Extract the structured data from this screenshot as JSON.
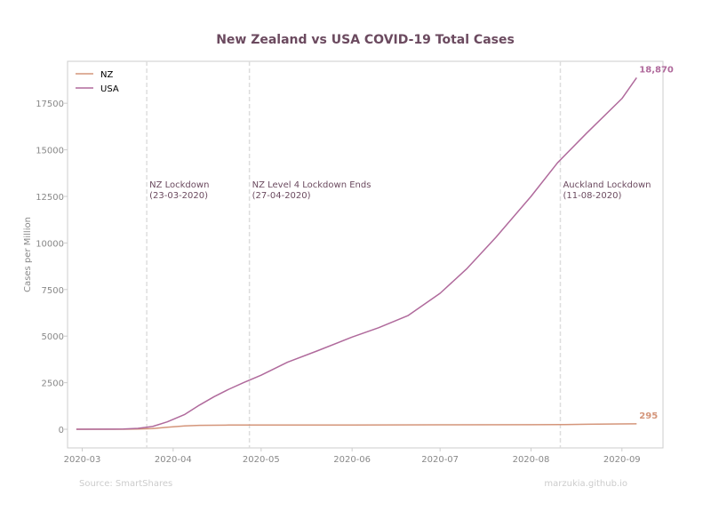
{
  "chart_data": {
    "type": "line",
    "title": "New Zealand vs USA COVID-19 Total Cases",
    "ylabel": "Cases per Million",
    "xlabel": "",
    "xlim": [
      "2020-02-25",
      "2020-09-15"
    ],
    "ylim": [
      -1000,
      19750
    ],
    "grid": false,
    "legend_position": "top-left",
    "x_ticks": [
      "2020-03-01",
      "2020-04-01",
      "2020-05-01",
      "2020-06-01",
      "2020-07-01",
      "2020-08-01",
      "2020-09-01"
    ],
    "x_tick_labels": [
      "2020-03",
      "2020-04",
      "2020-05",
      "2020-06",
      "2020-07",
      "2020-08",
      "2020-09"
    ],
    "y_ticks": [
      0,
      2500,
      5000,
      7500,
      10000,
      12500,
      15000,
      17500
    ],
    "y_tick_labels": [
      "0",
      "2500",
      "5000",
      "7500",
      "10000",
      "12500",
      "15000",
      "17500"
    ],
    "colors": {
      "title": "#6b4a5f",
      "nz": "#d4957a",
      "usa": "#b06a9c",
      "vline": "#dddddd",
      "axis": "#cccccc",
      "tick_text": "#888888",
      "annot_text": "#6b4a5f",
      "footer_text": "#cccccc"
    },
    "series": [
      {
        "name": "NZ",
        "color": "#d4957a",
        "end_label": "295",
        "points": [
          [
            "2020-02-28",
            0
          ],
          [
            "2020-03-10",
            1
          ],
          [
            "2020-03-15",
            2
          ],
          [
            "2020-03-20",
            10
          ],
          [
            "2020-03-25",
            40
          ],
          [
            "2020-03-30",
            110
          ],
          [
            "2020-04-05",
            180
          ],
          [
            "2020-04-10",
            210
          ],
          [
            "2020-04-20",
            225
          ],
          [
            "2020-05-01",
            230
          ],
          [
            "2020-06-01",
            232
          ],
          [
            "2020-07-01",
            240
          ],
          [
            "2020-08-01",
            245
          ],
          [
            "2020-08-11",
            250
          ],
          [
            "2020-08-20",
            270
          ],
          [
            "2020-09-01",
            290
          ],
          [
            "2020-09-06",
            295
          ]
        ]
      },
      {
        "name": "USA",
        "color": "#b06a9c",
        "end_label": "18,870",
        "points": [
          [
            "2020-02-28",
            0
          ],
          [
            "2020-03-10",
            5
          ],
          [
            "2020-03-15",
            10
          ],
          [
            "2020-03-20",
            50
          ],
          [
            "2020-03-25",
            150
          ],
          [
            "2020-03-30",
            400
          ],
          [
            "2020-04-05",
            800
          ],
          [
            "2020-04-10",
            1300
          ],
          [
            "2020-04-15",
            1750
          ],
          [
            "2020-04-20",
            2150
          ],
          [
            "2020-04-25",
            2500
          ],
          [
            "2020-05-01",
            2900
          ],
          [
            "2020-05-10",
            3600
          ],
          [
            "2020-05-20",
            4200
          ],
          [
            "2020-06-01",
            4950
          ],
          [
            "2020-06-10",
            5450
          ],
          [
            "2020-06-20",
            6100
          ],
          [
            "2020-07-01",
            7300
          ],
          [
            "2020-07-10",
            8600
          ],
          [
            "2020-07-20",
            10300
          ],
          [
            "2020-08-01",
            12500
          ],
          [
            "2020-08-10",
            14300
          ],
          [
            "2020-08-20",
            15900
          ],
          [
            "2020-09-01",
            17750
          ],
          [
            "2020-09-06",
            18870
          ]
        ]
      }
    ],
    "annotations": [
      {
        "x": "2020-03-23",
        "line1": "NZ Lockdown",
        "line2": "(23-03-2020)"
      },
      {
        "x": "2020-04-27",
        "line1": "NZ Level 4 Lockdown Ends",
        "line2": "(27-04-2020)"
      },
      {
        "x": "2020-08-11",
        "line1": "Auckland Lockdown",
        "line2": "(11-08-2020)"
      }
    ],
    "footer_left": "Source: SmartShares",
    "footer_right": "marzukia.github.io"
  }
}
